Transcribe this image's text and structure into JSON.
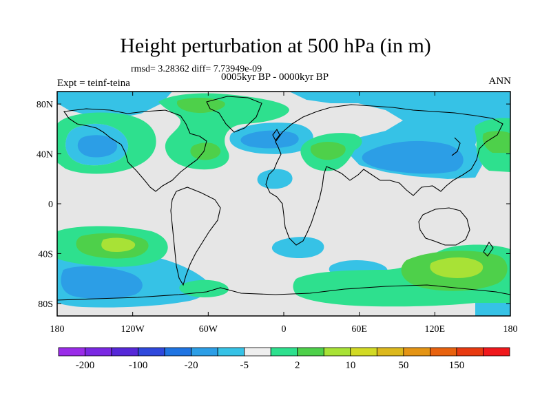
{
  "title": "Height perturbation at 500 hPa (in m)",
  "stats": "rmsd= 3.28362 diff= 7.73949e-09",
  "period": "0005kyr BP - 0000kyr BP",
  "experiment": "Expt = teinf-teina",
  "season": "ANN",
  "lat_labels": [
    "80N",
    "40N",
    "0",
    "40S",
    "80S"
  ],
  "lon_labels": [
    "180",
    "120W",
    "60W",
    "0",
    "60E",
    "120E",
    "180"
  ],
  "colorbar": {
    "labels": [
      "-200",
      "-100",
      "-20",
      "-5",
      "2",
      "10",
      "50",
      "150"
    ],
    "colors": [
      "#9a2ce8",
      "#7a28e2",
      "#5628d8",
      "#2f48dc",
      "#1f74e2",
      "#2c9ee6",
      "#36c2e6",
      "#eeeeee",
      "#2ee08e",
      "#4ed04a",
      "#a8e236",
      "#d2da24",
      "#dcb81c",
      "#e49414",
      "#e8620e",
      "#e83a10",
      "#f0181c"
    ]
  },
  "palette": {
    "background": "#e6e6e6",
    "neg_light": "#36c2e6",
    "neg_mid": "#2c9ee6",
    "neg_dark": "#1f74e2",
    "pos_light": "#2ee08e",
    "pos_mid": "#4ed04a",
    "pos_strong": "#a8e236"
  }
}
